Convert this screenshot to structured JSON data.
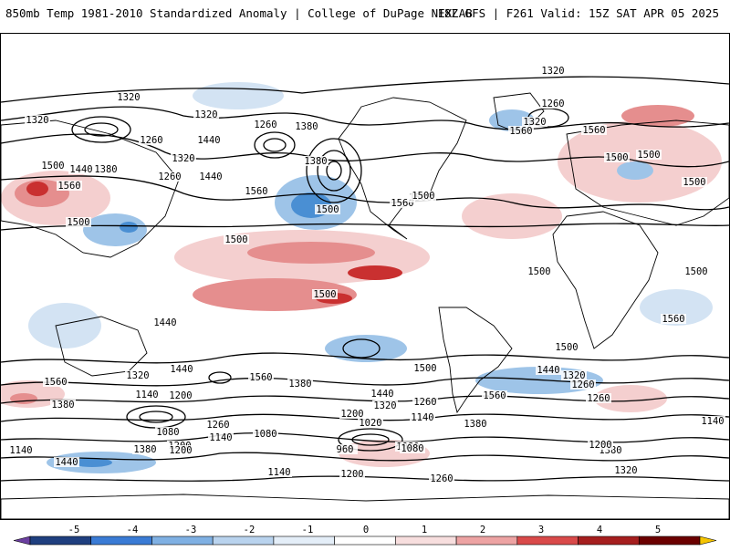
{
  "header": {
    "title": "850mb Temp 1981-2010 Standardized Anomaly | College of DuPage NEXLAB",
    "run_info": "18Z GFS | F261 Valid: 15Z SAT APR 05 2025"
  },
  "map": {
    "contour_labels": [
      "1320",
      "1320",
      "1320",
      "1260",
      "1320",
      "1440",
      "1260",
      "1380",
      "1380",
      "1320",
      "1500",
      "1440",
      "1380",
      "1560",
      "1500",
      "1260",
      "1440",
      "1560",
      "1500",
      "1560",
      "1500",
      "1560",
      "1500",
      "1320",
      "1560",
      "1260",
      "1500",
      "1500",
      "1500",
      "1500",
      "1500",
      "1440",
      "1500",
      "1500",
      "1560",
      "1500",
      "1560",
      "1380",
      "1320",
      "1440",
      "1560",
      "1380",
      "1140",
      "1200",
      "1440",
      "1320",
      "1260",
      "1440",
      "1320",
      "1260",
      "1380",
      "1080",
      "1260",
      "1200",
      "1140",
      "1020",
      "1080",
      "1140",
      "1200",
      "1380",
      "1140",
      "1440",
      "1200",
      "1080",
      "1260",
      "960",
      "1080",
      "1140",
      "1200",
      "1260",
      "1320",
      "1380",
      "1560",
      "1200",
      "1140",
      "1500"
    ],
    "anomaly_colors": {
      "warm_light": "#f4cfcf",
      "warm_mid": "#e58e8e",
      "warm_strong": "#c93030",
      "warm_extreme": "#8b0000",
      "cool_light": "#d3e3f3",
      "cool_mid": "#9ec4e8",
      "cool_strong": "#4a8fd3",
      "cool_extreme": "#1f4f8f"
    }
  },
  "colorbar": {
    "ticks": [
      "-5",
      "-4",
      "-3",
      "-2",
      "-1",
      "0",
      "1",
      "2",
      "3",
      "4",
      "5"
    ],
    "colors": [
      "#6b3fa0",
      "#1f3f7f",
      "#3a7bd5",
      "#7fb0e3",
      "#b9d3ee",
      "#e4eef8",
      "#ffffff",
      "#f7dede",
      "#eda3a3",
      "#d94a4a",
      "#a51e1e",
      "#6b0000",
      "#f5c400"
    ]
  }
}
